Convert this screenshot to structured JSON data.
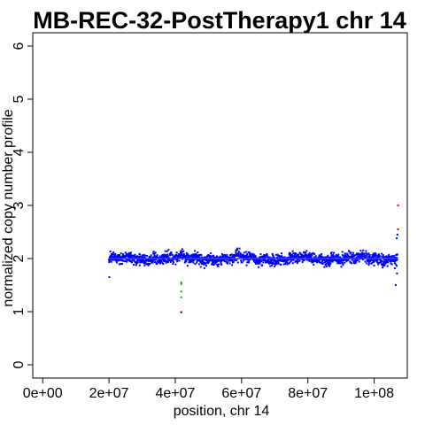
{
  "chart_data": {
    "type": "scatter",
    "title": "MB-REC-32-PostTherapy1 chr 14",
    "xlabel": "position, chr 14",
    "ylabel": "normalized copy number profile",
    "xlim": [
      -3000000,
      110000000
    ],
    "ylim": [
      -0.25,
      6.25
    ],
    "x_ticks": [
      0,
      20000000,
      40000000,
      60000000,
      80000000,
      100000000
    ],
    "x_tick_labels": [
      "0e+00",
      "2e+07",
      "4e+07",
      "6e+07",
      "8e+07",
      "1e+08"
    ],
    "y_ticks": [
      0,
      1,
      2,
      3,
      4,
      5,
      6
    ],
    "y_tick_labels": [
      "0",
      "1",
      "2",
      "3",
      "4",
      "5",
      "6"
    ],
    "grid": false,
    "legend": "none",
    "colors": {
      "main": "#0000ff",
      "segment": "#3355ff",
      "low_outlier": "#00bb00",
      "high_outlier": "#cc0000",
      "extreme_low": "#000000"
    },
    "segment": {
      "x_start": 20000000,
      "x_end": 107000000,
      "y": 2.0
    },
    "main_points": {
      "x_start": 20000000,
      "x_end": 107000000,
      "count": 1700,
      "baseline": 2.0,
      "approx_spread": 0.07
    },
    "outliers": [
      {
        "x": 41800000,
        "y": 1.55,
        "color": "low_outlier"
      },
      {
        "x": 41800000,
        "y": 1.52,
        "color": "low_outlier"
      },
      {
        "x": 41800000,
        "y": 1.38,
        "color": "low_outlier"
      },
      {
        "x": 41800000,
        "y": 1.27,
        "color": "low_outlier"
      },
      {
        "x": 41800000,
        "y": 0.99,
        "color": "extreme_low"
      },
      {
        "x": 107200000,
        "y": 3.0,
        "color": "high_outlier"
      },
      {
        "x": 107200000,
        "y": 2.55,
        "color": "high_outlier"
      },
      {
        "x": 107000000,
        "y": 2.45,
        "color": "main"
      },
      {
        "x": 106800000,
        "y": 2.38,
        "color": "main"
      },
      {
        "x": 106500000,
        "y": 1.5,
        "color": "main"
      },
      {
        "x": 106900000,
        "y": 1.72,
        "color": "main"
      },
      {
        "x": 20100000,
        "y": 1.65,
        "color": "main"
      }
    ]
  }
}
